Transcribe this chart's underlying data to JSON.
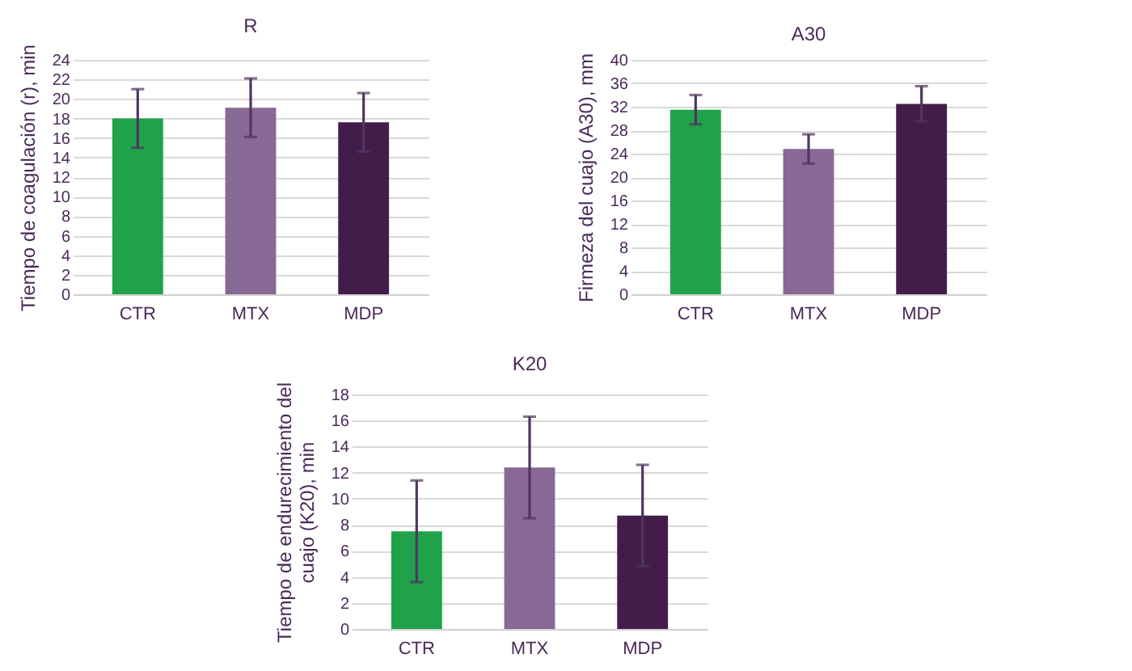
{
  "chart_data": [
    {
      "type": "bar",
      "title": "R",
      "ylabel": "Tiempo de coagulación (r), min",
      "categories": [
        "CTR",
        "MTX",
        "MDP"
      ],
      "values": [
        18.0,
        19.1,
        17.6
      ],
      "colors": [
        "#20a24a",
        "#886894",
        "#431d4a"
      ],
      "errors": [
        3,
        3,
        3
      ],
      "ylim": [
        0,
        24
      ],
      "yticks": [
        0,
        2,
        4,
        6,
        8,
        10,
        12,
        14,
        16,
        18,
        20,
        22,
        24
      ],
      "grid": "y"
    },
    {
      "type": "bar",
      "title": "A30",
      "ylabel": "Firmeza del cuajo (A30), mm",
      "categories": [
        "CTR",
        "MTX",
        "MDP"
      ],
      "values": [
        31.5,
        24.8,
        32.5
      ],
      "colors": [
        "#20a24a",
        "#886894",
        "#431d4a"
      ],
      "errors": [
        2.5,
        2.5,
        3
      ],
      "ylim": [
        0,
        40
      ],
      "yticks": [
        0,
        4,
        8,
        12,
        16,
        20,
        24,
        28,
        32,
        36,
        40
      ],
      "grid": "y"
    },
    {
      "type": "bar",
      "title": "K20",
      "ylabel": "Tiempo de endurecimiento del cuajo (K20), min",
      "categories": [
        "CTR",
        "MTX",
        "MDP"
      ],
      "values": [
        7.5,
        12.4,
        8.7
      ],
      "colors": [
        "#20a24a",
        "#886894",
        "#431d4a"
      ],
      "errors": [
        3.9,
        3.9,
        3.9
      ],
      "ylim": [
        0,
        18
      ],
      "yticks": [
        0,
        2,
        4,
        6,
        8,
        10,
        12,
        14,
        16,
        18
      ],
      "grid": "y"
    }
  ]
}
